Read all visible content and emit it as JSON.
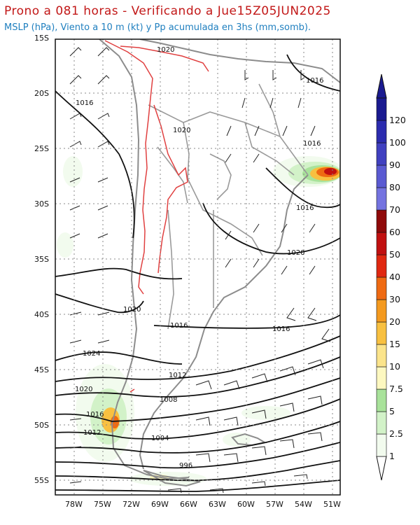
{
  "header": {
    "title": "Prono a 081 horas - Verificando a Jue15Z05JUN2025",
    "subtitle": "MSLP (hPa), Viento a 10 m (kt) y Pp acumulada en 3hs (mm,somb)."
  },
  "map": {
    "region": "South America - southern cone",
    "lat_range": [
      -56,
      -15
    ],
    "lon_range": [
      -80,
      -50
    ],
    "lat_ticks": [
      "15S",
      "20S",
      "25S",
      "30S",
      "35S",
      "40S",
      "45S",
      "50S",
      "55S"
    ],
    "lon_ticks": [
      "78W",
      "75W",
      "72W",
      "69W",
      "66W",
      "63W",
      "60W",
      "57W",
      "54W",
      "51W"
    ],
    "gridlines": "dotted",
    "isobar_labels": [
      "1020",
      "1016",
      "1016",
      "1020",
      "1016",
      "1016",
      "1020",
      "1020",
      "1016",
      "1016",
      "1024",
      "1012",
      "1020",
      "1008",
      "1016",
      "1012",
      "1004",
      "996"
    ]
  },
  "colorbar": {
    "levels": [
      "1",
      "2.5",
      "5",
      "7.5",
      "10",
      "15",
      "20",
      "30",
      "40",
      "50",
      "60",
      "70",
      "80",
      "90",
      "100",
      "120"
    ],
    "colors": [
      "#f2fbee",
      "#d2f2c8",
      "#a8e29a",
      "#fdf8c0",
      "#fbe48b",
      "#f8c040",
      "#f49a1f",
      "#ef6a12",
      "#e02810",
      "#c11010",
      "#8f0a0a",
      "#7473e0",
      "#5a5ad2",
      "#4040c0",
      "#2c2caf",
      "#1a1a90"
    ]
  },
  "colors": {
    "title": "#c21818",
    "subtitle": "#1f7fbf",
    "isobar": "#111111",
    "topo_contour": "#e04040",
    "borders": "#8c8c8c"
  }
}
